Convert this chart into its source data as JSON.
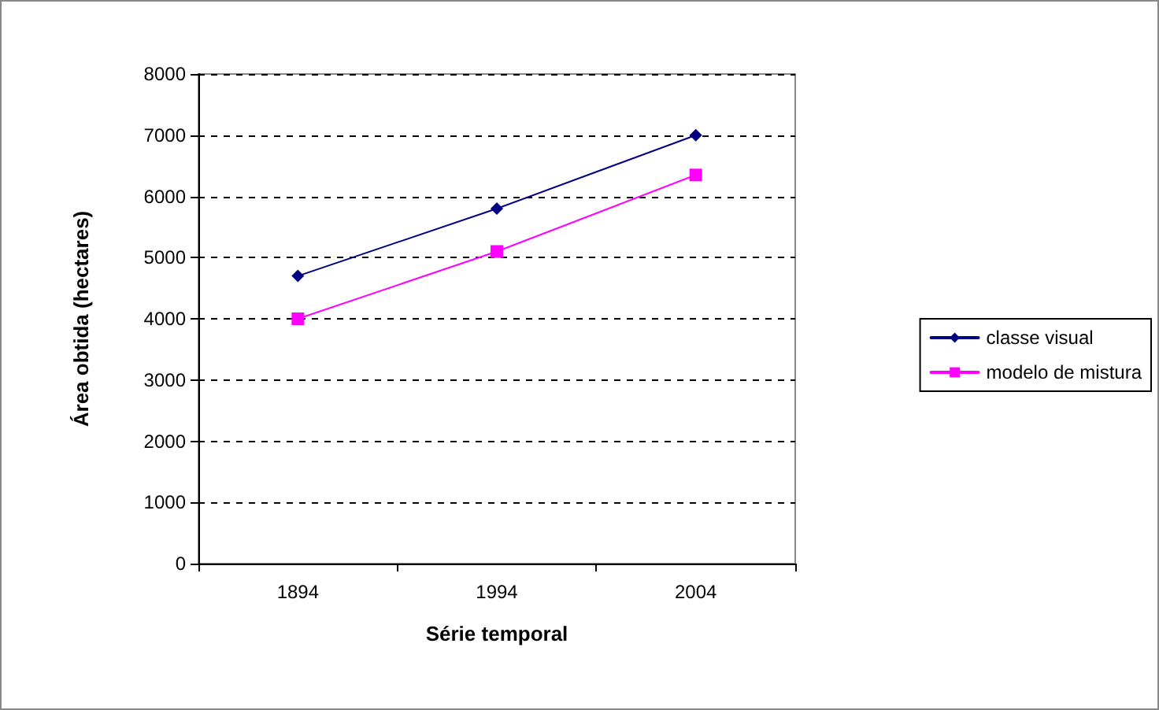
{
  "chart_data": {
    "type": "line",
    "xlabel": "Série temporal",
    "ylabel": "Área obtida (hectares)",
    "categories": [
      "1894",
      "1994",
      "2004"
    ],
    "series": [
      {
        "name": "classe visual",
        "color": "#000080",
        "values": [
          4700,
          5800,
          7000
        ],
        "marker": "diamond"
      },
      {
        "name": "modelo de mistura",
        "color": "#ff00ff",
        "values": [
          4000,
          5100,
          6350
        ],
        "marker": "square"
      }
    ],
    "ylim": [
      0,
      8000
    ],
    "yticks": [
      0,
      1000,
      2000,
      3000,
      4000,
      5000,
      6000,
      7000,
      8000
    ],
    "grid": "y",
    "legend": "right",
    "line_style": "solid"
  }
}
